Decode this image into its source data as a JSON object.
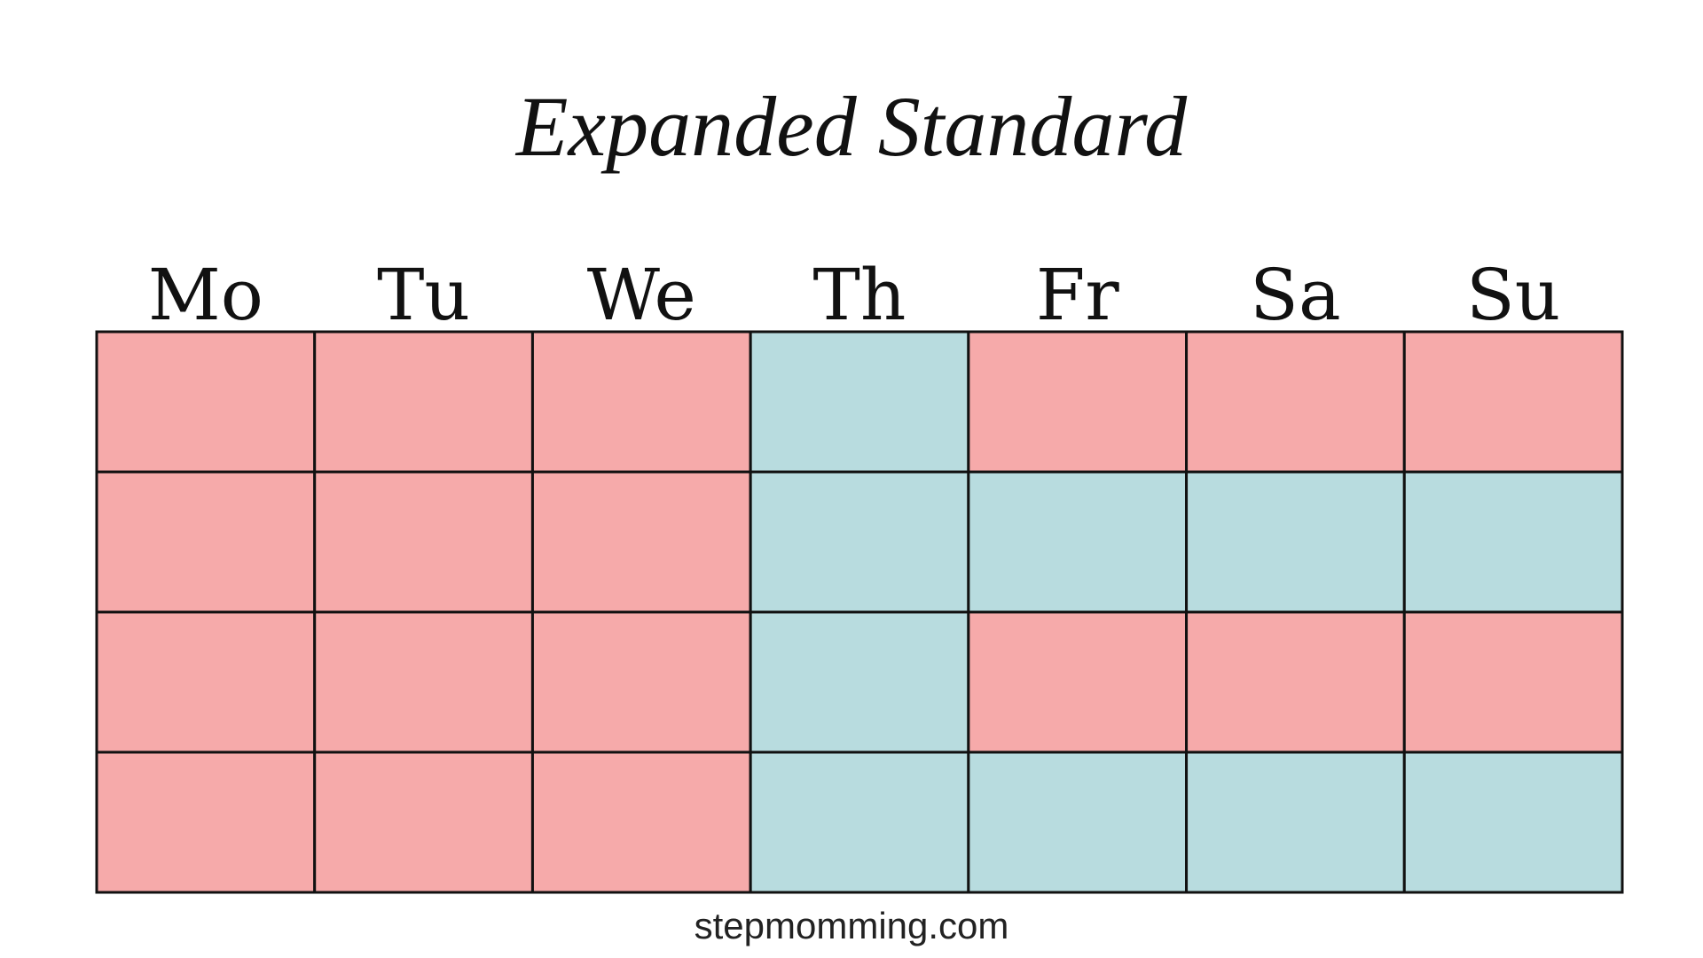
{
  "title": "Expanded Standard",
  "days": [
    "Mo",
    "Tu",
    "We",
    "Th",
    "Fr",
    "Sa",
    "Su"
  ],
  "weeks": [
    [
      "#f6aaaa",
      "#f6aaaa",
      "#f6aaaa",
      "#b8dcdf",
      "#f6aaaa",
      "#f6aaaa",
      "#f6aaaa"
    ],
    [
      "#f6aaaa",
      "#f6aaaa",
      "#f6aaaa",
      "#b8dcdf",
      "#b8dcdf",
      "#b8dcdf",
      "#b8dcdf"
    ],
    [
      "#f6aaaa",
      "#f6aaaa",
      "#f6aaaa",
      "#b8dcdf",
      "#f6aaaa",
      "#f6aaaa",
      "#f6aaaa"
    ],
    [
      "#f6aaaa",
      "#f6aaaa",
      "#f6aaaa",
      "#b8dcdf",
      "#b8dcdf",
      "#b8dcdf",
      "#b8dcdf"
    ]
  ],
  "footer": "stepmomming.com"
}
